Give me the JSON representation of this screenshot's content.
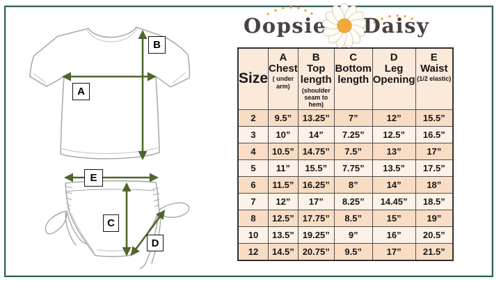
{
  "logo": {
    "word_left": "Oopsie",
    "word_right": "Daisy"
  },
  "diagram": {
    "labels": {
      "a": "A",
      "b": "B",
      "c": "C",
      "d": "D",
      "e": "E"
    }
  },
  "table": {
    "header": [
      {
        "letter": "",
        "name": "Size",
        "sub": ""
      },
      {
        "letter": "A",
        "name": "Chest",
        "sub": "( under arm)"
      },
      {
        "letter": "B",
        "name": "Top length",
        "sub": "(shoulder seam to hem)"
      },
      {
        "letter": "C",
        "name": "Bottom length",
        "sub": ""
      },
      {
        "letter": "D",
        "name": "Leg Opening",
        "sub": ""
      },
      {
        "letter": "E",
        "name": "Waist",
        "sub": "(1/2 elastic)"
      }
    ],
    "rows": [
      [
        "2",
        "9.5”",
        "13.25”",
        "7”",
        "12”",
        "15.5”"
      ],
      [
        "3",
        "10”",
        "14”",
        "7.25”",
        "12.5”",
        "16.5”"
      ],
      [
        "4",
        "10.5”",
        "14.75”",
        "7.5”",
        "13”",
        "17”"
      ],
      [
        "5",
        "11”",
        "15.5”",
        "7.75”",
        "13.5”",
        "17.5”"
      ],
      [
        "6",
        "11.5”",
        "16.25”",
        "8”",
        "14”",
        "18”"
      ],
      [
        "7",
        "12”",
        "17”",
        "8.25”",
        "14.45”",
        "18.5”"
      ],
      [
        "8",
        "12.5”",
        "17.75”",
        "8.5”",
        "15”",
        "19”"
      ],
      [
        "10",
        "13.5”",
        "19.25”",
        "9”",
        "16”",
        "20.5”"
      ],
      [
        "12",
        "14.5”",
        "20.75”",
        "9.5”",
        "17”",
        "21.5”"
      ]
    ]
  },
  "colors": {
    "frame": "#2f5f55",
    "arrow": "#4e662b",
    "header_bg": "#fbe9d9",
    "row_dark": "#f8dcc4",
    "row_light": "#fdf2e7",
    "daisy_center": "#f2a93b",
    "logo_text": "#4a4240"
  }
}
